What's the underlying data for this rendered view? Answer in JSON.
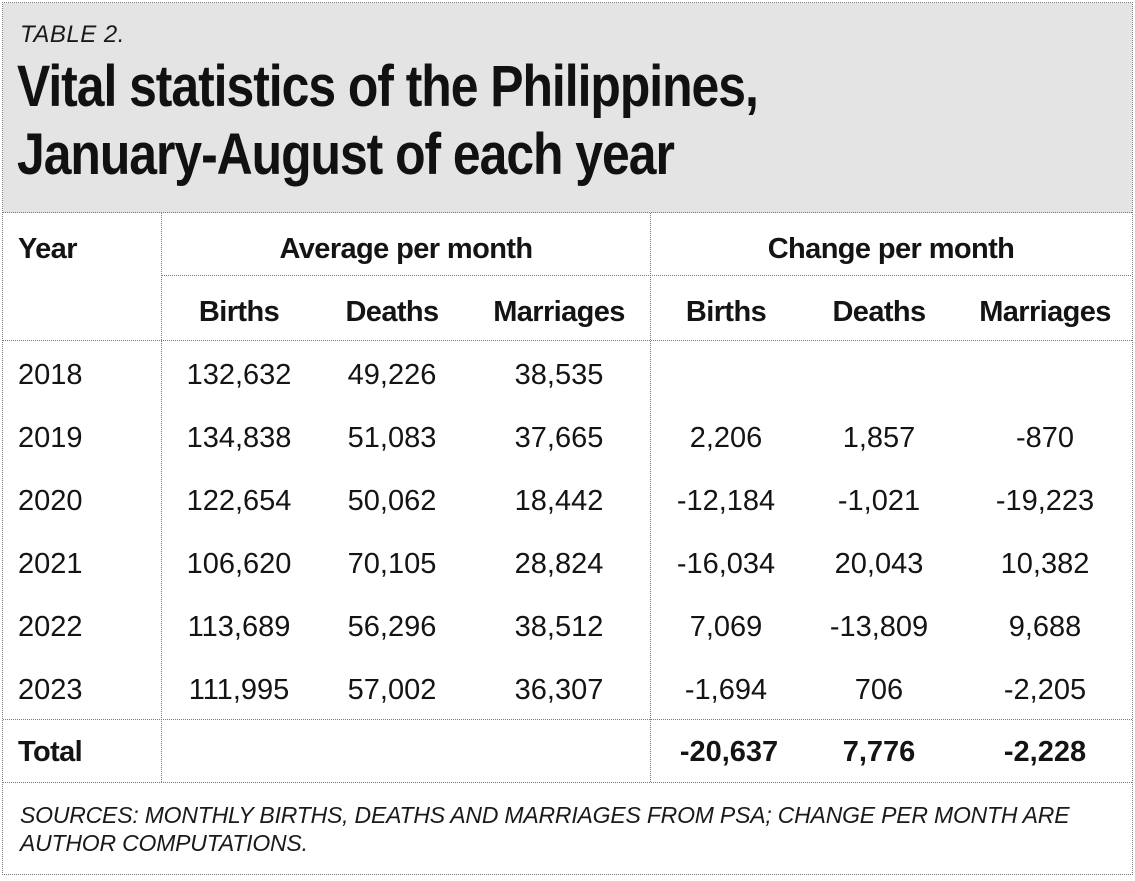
{
  "table_label": "TABLE 2.",
  "title_line1": "Vital statistics of the Philippines,",
  "title_line2": "January-August of each year",
  "headers": {
    "year": "Year",
    "group_average": "Average per month",
    "group_change": "Change per month",
    "avg_births": "Births",
    "avg_deaths": "Deaths",
    "avg_marriages": "Marriages",
    "chg_births": "Births",
    "chg_deaths": "Deaths",
    "chg_marriages": "Marriages"
  },
  "rows": [
    {
      "year": "2018",
      "avg_births": "132,632",
      "avg_deaths": "49,226",
      "avg_marriages": "38,535",
      "chg_births": "",
      "chg_deaths": "",
      "chg_marriages": ""
    },
    {
      "year": "2019",
      "avg_births": "134,838",
      "avg_deaths": "51,083",
      "avg_marriages": "37,665",
      "chg_births": "2,206",
      "chg_deaths": "1,857",
      "chg_marriages": "-870"
    },
    {
      "year": "2020",
      "avg_births": "122,654",
      "avg_deaths": "50,062",
      "avg_marriages": "18,442",
      "chg_births": "-12,184",
      "chg_deaths": "-1,021",
      "chg_marriages": "-19,223"
    },
    {
      "year": "2021",
      "avg_births": "106,620",
      "avg_deaths": "70,105",
      "avg_marriages": "28,824",
      "chg_births": "-16,034",
      "chg_deaths": "20,043",
      "chg_marriages": "10,382"
    },
    {
      "year": "2022",
      "avg_births": "113,689",
      "avg_deaths": "56,296",
      "avg_marriages": "38,512",
      "chg_births": "7,069",
      "chg_deaths": "-13,809",
      "chg_marriages": "9,688"
    },
    {
      "year": "2023",
      "avg_births": "111,995",
      "avg_deaths": "57,002",
      "avg_marriages": "36,307",
      "chg_births": "-1,694",
      "chg_deaths": "706",
      "chg_marriages": "-2,205"
    }
  ],
  "total": {
    "label": "Total",
    "chg_births": "-20,637",
    "chg_deaths": "7,776",
    "chg_marriages": "-2,228"
  },
  "sources": "SOURCES: MONTHLY BIRTHS, DEATHS AND MARRIAGES FROM PSA; CHANGE PER MONTH ARE AUTHOR COMPUTATIONS."
}
